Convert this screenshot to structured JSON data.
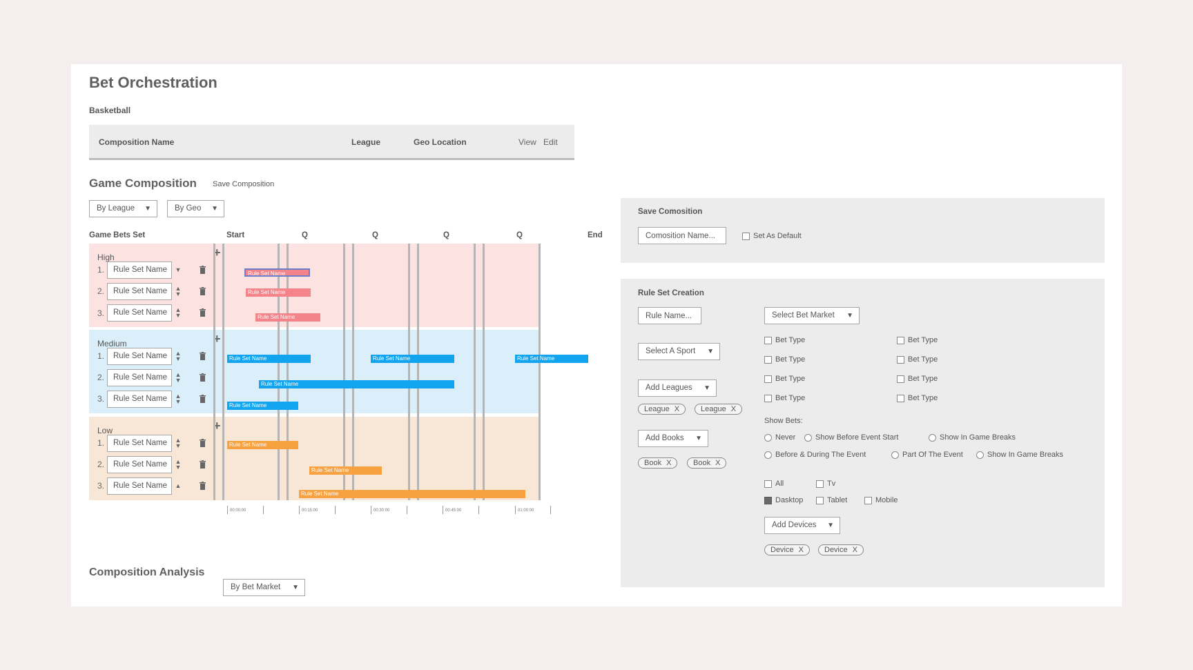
{
  "page": {
    "title": "Bet Orchestration",
    "sport": "Basketball"
  },
  "composition_table": {
    "col_name": "Composition Name",
    "col_league": "League",
    "col_geo": "Geo Location",
    "view_label": "View",
    "edit_label": "Edit"
  },
  "game_composition": {
    "title": "Game Composition",
    "save_label": "Save Composition",
    "filter_league": "By League",
    "filter_geo": "By Geo"
  },
  "timeline": {
    "set_header": "Game Bets Set",
    "columns": [
      "Start",
      "Q",
      "Q",
      "Q",
      "Q",
      "End"
    ],
    "ticks": [
      "00:00:00",
      "00:15:00",
      "00:30:00",
      "00:45:00",
      "01:00:00"
    ],
    "bar_label": "Rule Set Name",
    "rule_placeholder": "Rule Set Name",
    "bands": [
      {
        "label": "High",
        "color": "#fde2e2",
        "bar_color": "#f4848a",
        "rows": [
          "1.",
          "2.",
          "3."
        ]
      },
      {
        "label": "Medium",
        "color": "#dbeffa",
        "bar_color": "#12a4ef",
        "rows": [
          "1.",
          "2.",
          "3."
        ]
      },
      {
        "label": "Low",
        "color": "#f8e6d7",
        "bar_color": "#f7a140",
        "rows": [
          "1.",
          "2.",
          "3."
        ]
      }
    ]
  },
  "composition_analysis": {
    "title": "Composition Analysis",
    "filter": "By Bet Market"
  },
  "save_panel": {
    "title": "Save Comosition",
    "name_placeholder": "Comosition Name...",
    "default_label": "Set As Default"
  },
  "rule_panel": {
    "title": "Rule Set Creation",
    "rule_name_placeholder": "Rule Name...",
    "sport_select": "Select A Sport",
    "leagues_select": "Add Leagues",
    "leagues": [
      "League",
      "League"
    ],
    "books_select": "Add Books",
    "books": [
      "Book",
      "Book"
    ],
    "bet_market_select": "Select Bet Market",
    "bet_types": [
      "Bet Type",
      "Bet Type",
      "Bet Type",
      "Bet Type",
      "Bet Type",
      "Bet Type",
      "Bet Type",
      "Bet Type"
    ],
    "show_bets_label": "Show Bets:",
    "show_bets_options": [
      "Never",
      "Show Before Event Start",
      "Show In Game Breaks",
      "Before & During The Event",
      "Part Of The Event",
      "Show In Game Breaks"
    ],
    "devices": {
      "all": "All",
      "tv": "Tv",
      "desktop": "Dasktop",
      "tablet": "Tablet",
      "mobile": "Mobile"
    },
    "devices_select": "Add Devices",
    "device_tags": [
      "Device",
      "Device"
    ]
  },
  "colors": {
    "accent_red": "#f4848a",
    "accent_blue": "#12a4ef",
    "accent_orange": "#f7a140"
  }
}
